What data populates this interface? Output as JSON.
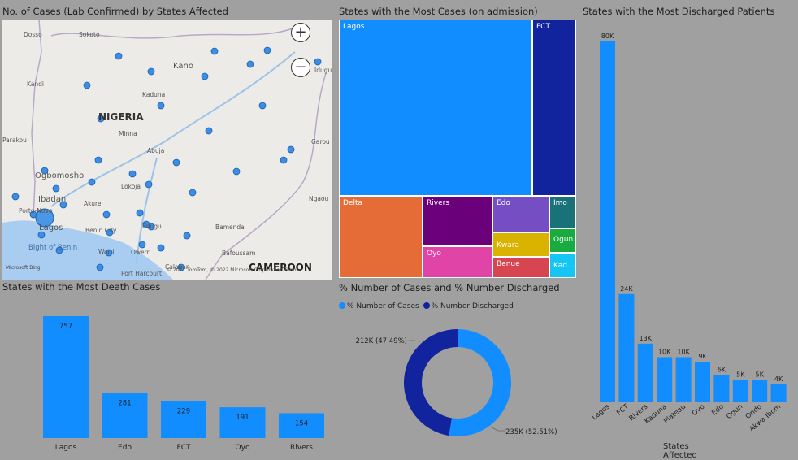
{
  "map": {
    "title": "No. of Cases (Lab Confirmed) by States Affected",
    "labels": {
      "country": "NIGERIA",
      "neighbor": "CAMEROON",
      "sea": "Bight of Benin"
    },
    "cities": [
      "Dosso",
      "Sokoto",
      "Kano",
      "Kaduna",
      "Minna",
      "Abuja",
      "Ogbomosho",
      "Ibadan",
      "Lagos",
      "Porto-Novo",
      "Benin City",
      "Warri",
      "Owerri",
      "Enugu",
      "Lokoja",
      "Akure",
      "Bamenda",
      "Bafoussam",
      "Port Harcourt",
      "Calabar",
      "Kandi",
      "Parakou",
      "Ngaou",
      "Garou",
      "Idugu"
    ],
    "attribution": "© 2021 TomTom, © 2022 Microsoft Corporation Terms",
    "bing": "Microsoft Bing",
    "zoom_in": "+",
    "zoom_out": "−",
    "bubble_color": "#3a8ee6"
  },
  "treemap": {
    "title": "States with the Most Cases (on admission)",
    "cells": [
      {
        "label": "Lagos",
        "color": "#118dff"
      },
      {
        "label": "FCT",
        "color": "#12239e"
      },
      {
        "label": "Delta",
        "color": "#e66c37"
      },
      {
        "label": "Rivers",
        "color": "#6b007b"
      },
      {
        "label": "Edo",
        "color": "#744ec2"
      },
      {
        "label": "Imo",
        "color": "#197278"
      },
      {
        "label": "Kwara",
        "color": "#d9b300"
      },
      {
        "label": "Ogun",
        "color": "#1aab40"
      },
      {
        "label": "Oyo",
        "color": "#e044a7"
      },
      {
        "label": "Benue",
        "color": "#d64550"
      },
      {
        "label": "Kad...",
        "color": "#15c6f4"
      }
    ]
  },
  "discharged": {
    "title": "States with the Most Discharged Patients",
    "xlabel": "States Affected",
    "color": "#118dff",
    "chart_data": {
      "type": "bar",
      "categories": [
        "Lagos",
        "FCT",
        "Rivers",
        "Kaduna",
        "Plateau",
        "Oyo",
        "Edo",
        "Ogun",
        "Ondo",
        "Akwa Ibom"
      ],
      "values": [
        80000,
        24000,
        13000,
        10000,
        10000,
        9000,
        6000,
        5000,
        5000,
        4000
      ],
      "data_labels": [
        "80K",
        "24K",
        "13K",
        "10K",
        "10K",
        "9K",
        "6K",
        "5K",
        "5K",
        "4K"
      ],
      "xlabel": "States Affected"
    }
  },
  "deaths": {
    "title": "States with the Most Death Cases",
    "color": "#118dff",
    "chart_data": {
      "type": "bar",
      "categories": [
        "Lagos",
        "Edo",
        "FCT",
        "Oyo",
        "Rivers"
      ],
      "values": [
        757,
        281,
        229,
        191,
        154
      ],
      "data_labels": [
        "757",
        "281",
        "229",
        "191",
        "154"
      ]
    }
  },
  "donut": {
    "title": "% Number of Cases and % Number Discharged",
    "legend": [
      {
        "label": "% Number of Cases",
        "color": "#118dff"
      },
      {
        "label": "% Number Discharged",
        "color": "#12239e"
      }
    ],
    "chart_data": {
      "type": "pie",
      "series": [
        {
          "name": "% Number of Cases",
          "value": 235,
          "percent": 52.51,
          "label": "235K (52.51%)"
        },
        {
          "name": "% Number Discharged",
          "value": 212,
          "percent": 47.49,
          "label": "212K (47.49%)"
        }
      ]
    }
  }
}
